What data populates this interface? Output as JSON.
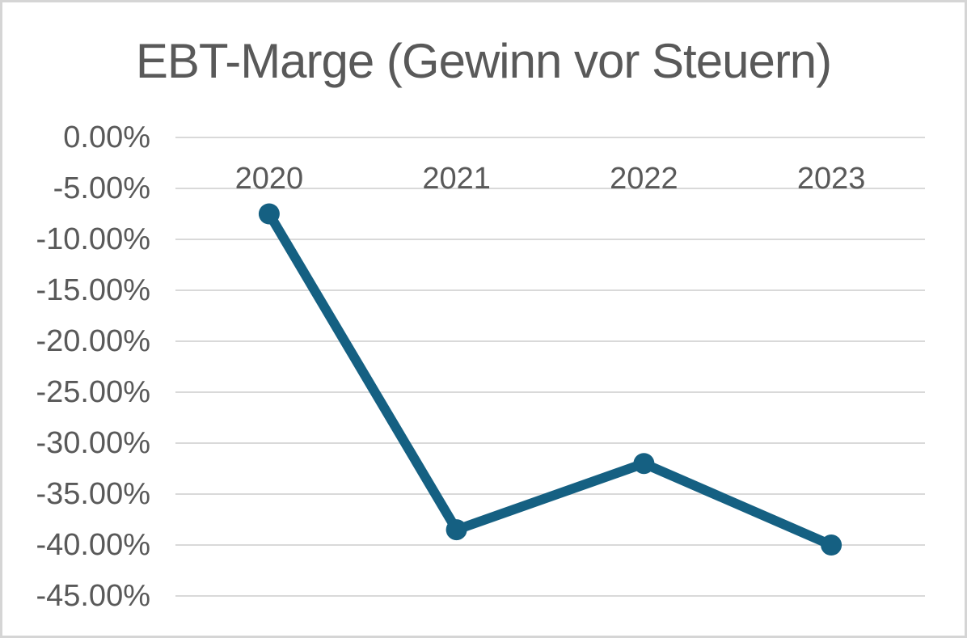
{
  "chart_data": {
    "type": "line",
    "title": "EBT-Marge (Gewinn vor Steuern)",
    "categories": [
      "2020",
      "2021",
      "2022",
      "2023"
    ],
    "values": [
      -7.5,
      -38.5,
      -32.0,
      -40.0
    ],
    "value_format": "percent",
    "ylim": [
      -45,
      0
    ],
    "y_ticks": [
      {
        "label": "0.00%",
        "value": 0
      },
      {
        "label": "-5.00%",
        "value": -5
      },
      {
        "label": "-10.00%",
        "value": -10
      },
      {
        "label": "-15.00%",
        "value": -15
      },
      {
        "label": "-20.00%",
        "value": -20
      },
      {
        "label": "-25.00%",
        "value": -25
      },
      {
        "label": "-30.00%",
        "value": -30
      },
      {
        "label": "-35.00%",
        "value": -35
      },
      {
        "label": "-40.00%",
        "value": -40
      },
      {
        "label": "-45.00%",
        "value": -45
      }
    ],
    "grid": true,
    "legend": "none",
    "colors": {
      "line": "#156082",
      "marker": "#156082",
      "gridline": "#d9d9d9",
      "text": "#595959",
      "frame_border": "#d5d5d5",
      "background": "#ffffff"
    }
  }
}
